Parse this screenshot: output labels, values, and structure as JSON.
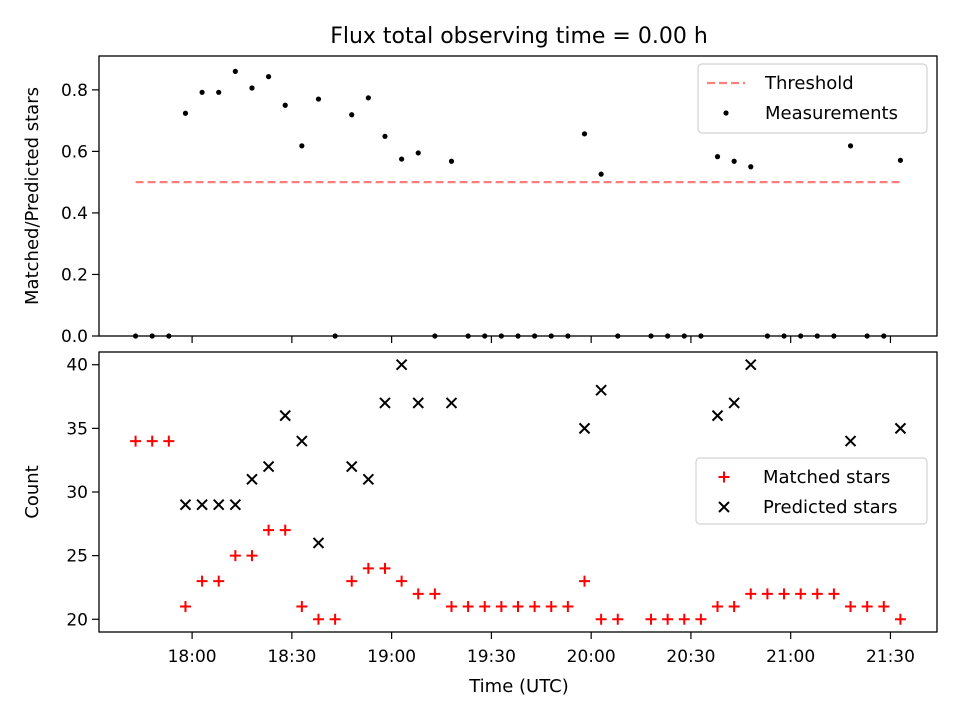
{
  "figure": {
    "title": "Flux total observing time = 0.00 h"
  },
  "colors": {
    "threshold": "#ff7f7f",
    "measurements": "#000000",
    "matched": "#ff0000",
    "predicted": "#000000"
  },
  "chart_data": [
    {
      "type": "scatter",
      "panel": "top",
      "title": "Flux total observing time = 0.00 h",
      "xlabel": "",
      "ylabel": "Matched/Predicted stars",
      "xlim": [
        "17:32",
        "21:44"
      ],
      "ylim": [
        0,
        0.91
      ],
      "yticks": [
        0.0,
        0.2,
        0.4,
        0.6,
        0.8
      ],
      "ytick_labels": [
        "0.0",
        "0.2",
        "0.4",
        "0.6",
        "0.8"
      ],
      "legend_location": "top-right",
      "series": [
        {
          "name": "Threshold",
          "kind": "dashed-line",
          "x": [
            "17:43",
            "21:33"
          ],
          "y": [
            0.5,
            0.5
          ]
        },
        {
          "name": "Measurements",
          "kind": "dots",
          "x": [
            "17:43",
            "17:48",
            "17:53",
            "17:58",
            "18:03",
            "18:08",
            "18:13",
            "18:18",
            "18:23",
            "18:28",
            "18:33",
            "18:38",
            "18:43",
            "18:48",
            "18:53",
            "18:58",
            "19:03",
            "19:08",
            "19:13",
            "19:18",
            "19:23",
            "19:28",
            "19:33",
            "19:38",
            "19:43",
            "19:48",
            "19:53",
            "19:58",
            "20:03",
            "20:08",
            "20:18",
            "20:23",
            "20:28",
            "20:33",
            "20:38",
            "20:43",
            "20:48",
            "20:53",
            "20:58",
            "21:03",
            "21:08",
            "21:13",
            "21:18",
            "21:23",
            "21:28",
            "21:33"
          ],
          "y": [
            0,
            0,
            0,
            0.724,
            0.792,
            0.792,
            0.86,
            0.806,
            0.843,
            0.75,
            0.618,
            0.77,
            0,
            0.719,
            0.774,
            0.649,
            0.575,
            0.595,
            0,
            0.568,
            0,
            0,
            0,
            0,
            0,
            0,
            0,
            0.657,
            0.526,
            0,
            0,
            0,
            0,
            0,
            0.583,
            0.568,
            0.55,
            0,
            0,
            0,
            0,
            0,
            0.618,
            0,
            0,
            0.571
          ]
        }
      ]
    },
    {
      "type": "scatter",
      "panel": "bottom",
      "xlabel": "Time (UTC)",
      "ylabel": "Count",
      "xlim": [
        "17:32",
        "21:44"
      ],
      "ylim": [
        19,
        41
      ],
      "yticks": [
        20,
        25,
        30,
        35,
        40
      ],
      "ytick_labels": [
        "20",
        "25",
        "30",
        "35",
        "40"
      ],
      "xticks": [
        "18:00",
        "18:30",
        "19:00",
        "19:30",
        "20:00",
        "20:30",
        "21:00",
        "21:30"
      ],
      "legend_location": "center-right",
      "series": [
        {
          "name": "Matched stars",
          "marker": "plus",
          "x": [
            "17:43",
            "17:48",
            "17:53",
            "17:58",
            "18:03",
            "18:08",
            "18:13",
            "18:18",
            "18:23",
            "18:28",
            "18:33",
            "18:38",
            "18:43",
            "18:48",
            "18:53",
            "18:58",
            "19:03",
            "19:08",
            "19:13",
            "19:18",
            "19:23",
            "19:28",
            "19:33",
            "19:38",
            "19:43",
            "19:48",
            "19:53",
            "19:58",
            "20:03",
            "20:08",
            "20:18",
            "20:23",
            "20:28",
            "20:33",
            "20:38",
            "20:43",
            "20:48",
            "20:53",
            "20:58",
            "21:03",
            "21:08",
            "21:13",
            "21:18",
            "21:23",
            "21:28",
            "21:33"
          ],
          "y": [
            34,
            34,
            34,
            21,
            23,
            23,
            25,
            25,
            27,
            27,
            21,
            20,
            20,
            23,
            24,
            24,
            23,
            22,
            22,
            21,
            21,
            21,
            21,
            21,
            21,
            21,
            21,
            23,
            20,
            20,
            20,
            20,
            20,
            20,
            21,
            21,
            22,
            22,
            22,
            22,
            22,
            22,
            21,
            21,
            21,
            20
          ]
        },
        {
          "name": "Predicted stars",
          "marker": "cross",
          "x": [
            "17:58",
            "18:03",
            "18:08",
            "18:13",
            "18:18",
            "18:23",
            "18:28",
            "18:33",
            "18:38",
            "18:48",
            "18:53",
            "18:58",
            "19:03",
            "19:08",
            "19:18",
            "19:58",
            "20:03",
            "20:38",
            "20:43",
            "20:48",
            "21:18",
            "21:33"
          ],
          "y": [
            29,
            29,
            29,
            29,
            31,
            32,
            36,
            34,
            26,
            32,
            31,
            37,
            40,
            37,
            37,
            35,
            38,
            36,
            37,
            40,
            34,
            35
          ]
        }
      ]
    }
  ]
}
